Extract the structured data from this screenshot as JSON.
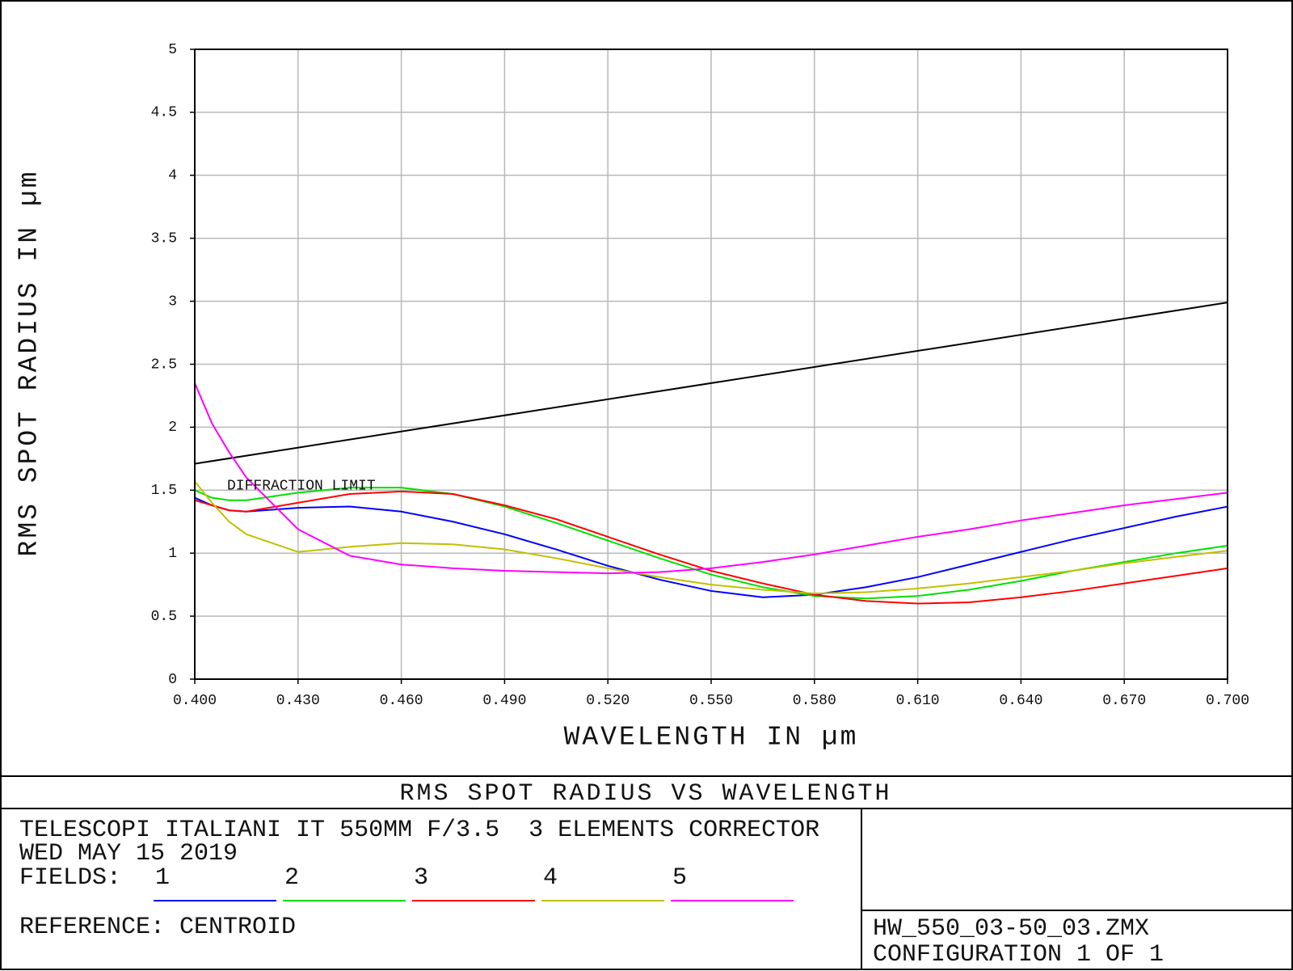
{
  "chart_data": {
    "type": "line",
    "title": "RMS SPOT RADIUS VS WAVELENGTH",
    "xlabel": "WAVELENGTH IN µm",
    "ylabel": "RMS SPOT RADIUS IN µm",
    "x": [
      0.4,
      0.405,
      0.41,
      0.415,
      0.43,
      0.445,
      0.46,
      0.475,
      0.49,
      0.505,
      0.52,
      0.535,
      0.55,
      0.565,
      0.58,
      0.595,
      0.61,
      0.625,
      0.64,
      0.655,
      0.67,
      0.685,
      0.7
    ],
    "series": [
      {
        "name": "1",
        "color": "#0000ff",
        "values": [
          1.44,
          1.38,
          1.34,
          1.33,
          1.36,
          1.37,
          1.33,
          1.25,
          1.15,
          1.03,
          0.9,
          0.79,
          0.7,
          0.65,
          0.67,
          0.73,
          0.81,
          0.91,
          1.01,
          1.11,
          1.2,
          1.29,
          1.37
        ]
      },
      {
        "name": "2",
        "color": "#00e000",
        "values": [
          1.5,
          1.44,
          1.42,
          1.42,
          1.48,
          1.52,
          1.52,
          1.47,
          1.37,
          1.24,
          1.1,
          0.96,
          0.83,
          0.73,
          0.66,
          0.64,
          0.66,
          0.71,
          0.78,
          0.86,
          0.93,
          1.0,
          1.06
        ]
      },
      {
        "name": "3",
        "color": "#ff0000",
        "values": [
          1.42,
          1.38,
          1.34,
          1.33,
          1.4,
          1.47,
          1.49,
          1.47,
          1.38,
          1.27,
          1.13,
          0.99,
          0.86,
          0.76,
          0.67,
          0.62,
          0.6,
          0.61,
          0.65,
          0.7,
          0.76,
          0.82,
          0.88
        ]
      },
      {
        "name": "4",
        "color": "#c0c000",
        "values": [
          1.57,
          1.4,
          1.25,
          1.15,
          1.01,
          1.05,
          1.08,
          1.07,
          1.03,
          0.96,
          0.88,
          0.81,
          0.75,
          0.71,
          0.68,
          0.69,
          0.72,
          0.76,
          0.81,
          0.86,
          0.92,
          0.97,
          1.02
        ]
      },
      {
        "name": "5",
        "color": "#ff00ff",
        "values": [
          2.35,
          2.03,
          1.8,
          1.6,
          1.19,
          0.98,
          0.91,
          0.88,
          0.86,
          0.85,
          0.84,
          0.85,
          0.88,
          0.93,
          0.99,
          1.06,
          1.13,
          1.19,
          1.26,
          1.32,
          1.38,
          1.43,
          1.48
        ]
      }
    ],
    "diffraction_limit": {
      "name": "DIFFRACTION LIMIT",
      "color": "#000000",
      "x": [
        0.4,
        0.7
      ],
      "values": [
        1.71,
        2.99
      ]
    },
    "xlim": [
      0.4,
      0.7
    ],
    "xticks": [
      {
        "value": 0.4,
        "label": "0.400"
      },
      {
        "value": 0.43,
        "label": "0.430"
      },
      {
        "value": 0.46,
        "label": "0.460"
      },
      {
        "value": 0.49,
        "label": "0.490"
      },
      {
        "value": 0.52,
        "label": "0.520"
      },
      {
        "value": 0.55,
        "label": "0.550"
      },
      {
        "value": 0.58,
        "label": "0.580"
      },
      {
        "value": 0.61,
        "label": "0.610"
      },
      {
        "value": 0.64,
        "label": "0.640"
      },
      {
        "value": 0.67,
        "label": "0.670"
      },
      {
        "value": 0.7,
        "label": "0.700"
      }
    ],
    "ylim": [
      0,
      5
    ],
    "yticks": [
      0,
      0.5,
      1,
      1.5,
      2,
      2.5,
      3,
      3.5,
      4,
      4.5,
      5
    ],
    "grid": true,
    "legend_title": "FIELDS:"
  },
  "footer": {
    "description": "TELESCOPI ITALIANI IT 550MM F/3.5  3 ELEMENTS CORRECTOR",
    "date": "WED MAY 15 2019",
    "reference": "REFERENCE: CENTROID",
    "file": "HW_550_03-50_03.ZMX",
    "configuration": "CONFIGURATION 1 OF 1"
  }
}
